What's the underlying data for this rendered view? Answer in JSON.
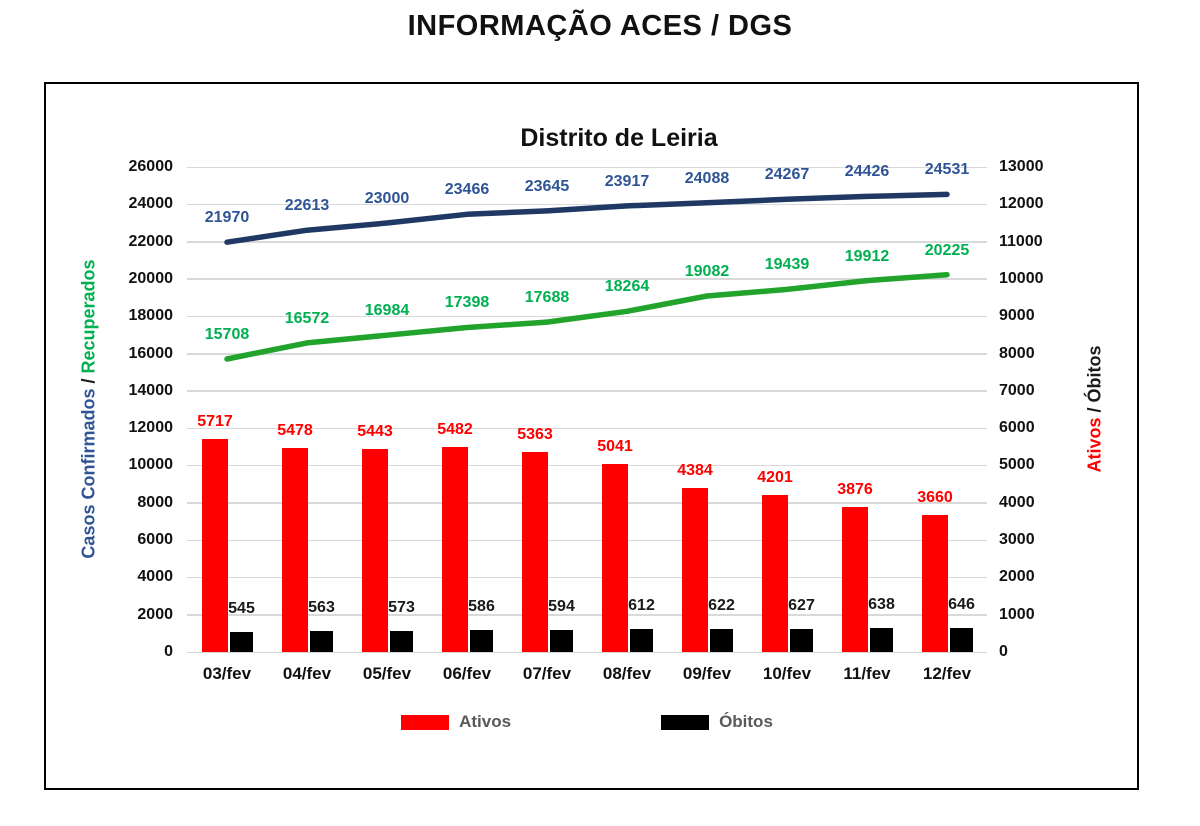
{
  "page_title": "INFORMAÇÃO ACES / DGS",
  "chart_data": {
    "type": "combo bar + line",
    "title": "Distrito de Leiria",
    "categories": [
      "03/fev",
      "04/fev",
      "05/fev",
      "06/fev",
      "07/fev",
      "08/fev",
      "09/fev",
      "10/fev",
      "11/fev",
      "12/fev"
    ],
    "series": [
      {
        "name": "Casos Confirmados",
        "type": "line",
        "axis": "left",
        "color": "#1f3864",
        "label_color": "#2f5496",
        "values": [
          21970,
          22613,
          23000,
          23466,
          23645,
          23917,
          24088,
          24267,
          24426,
          24531
        ]
      },
      {
        "name": "Recuperados",
        "type": "line",
        "axis": "left",
        "color": "#22a42c",
        "label_color": "#00b050",
        "values": [
          15708,
          16572,
          16984,
          17398,
          17688,
          18264,
          19082,
          19439,
          19912,
          20225
        ]
      },
      {
        "name": "Ativos",
        "type": "bar",
        "axis": "right",
        "color": "#ff0000",
        "label_color": "#ff0000",
        "values": [
          5717,
          5478,
          5443,
          5482,
          5363,
          5041,
          4384,
          4201,
          3876,
          3660
        ]
      },
      {
        "name": "Óbitos",
        "type": "bar",
        "axis": "right",
        "color": "#000000",
        "label_color": "#1a1a1a",
        "values": [
          545,
          563,
          573,
          586,
          594,
          612,
          622,
          627,
          638,
          646
        ]
      }
    ],
    "left_axis": {
      "min": 0,
      "max": 26000,
      "step": 2000,
      "title_parts": [
        {
          "text": "Casos Confirmados",
          "color": "#2f5496"
        },
        {
          "text": " / ",
          "color": "#1a1a1a"
        },
        {
          "text": "Recuperados",
          "color": "#00b050"
        }
      ]
    },
    "right_axis": {
      "min": 0,
      "max": 13000,
      "step": 1000,
      "title_parts": [
        {
          "text": "Ativos",
          "color": "#ff0000"
        },
        {
          "text": " / Óbitos",
          "color": "#1a1a1a"
        }
      ]
    },
    "legend": [
      {
        "label": "Ativos",
        "color": "#ff0000"
      },
      {
        "label": "Óbitos",
        "color": "#000000"
      }
    ],
    "grid": true,
    "legend_position": "bottom",
    "gridline_color": "#d9d9d9"
  }
}
